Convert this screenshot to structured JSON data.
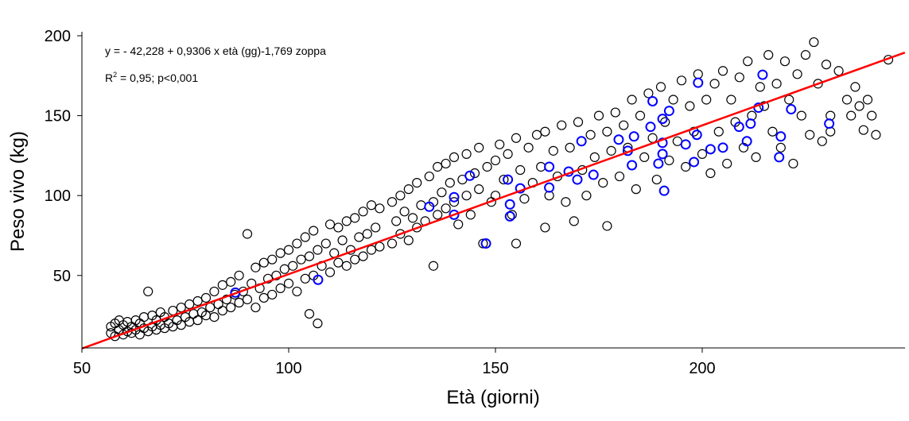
{
  "chart_data": {
    "type": "scatter",
    "xlabel": "Età (giorni)",
    "ylabel": "Peso vivo (kg)",
    "xlim": [
      50,
      250
    ],
    "ylim": [
      5,
      205
    ],
    "xticks": [
      50,
      100,
      150,
      200
    ],
    "yticks": [
      50,
      100,
      150,
      200
    ],
    "grid": false,
    "annotations": {
      "equation": "y = - 42,228 + 0,9306 x età (gg)-1,769 zoppa",
      "r2_prefix": "R",
      "r2_sup": "2",
      "r2_rest": " = 0,95; p<0,001"
    },
    "regression": {
      "intercept": -42.228,
      "slope": 0.9306,
      "color": "#ff0000"
    },
    "series": [
      {
        "marker": "open-circle",
        "color": "#000000",
        "points": [
          [
            57,
            14
          ],
          [
            57,
            18
          ],
          [
            58,
            12
          ],
          [
            58,
            20
          ],
          [
            59,
            16
          ],
          [
            59,
            22
          ],
          [
            60,
            13
          ],
          [
            60,
            19
          ],
          [
            61,
            15
          ],
          [
            61,
            21
          ],
          [
            62,
            14
          ],
          [
            62,
            18
          ],
          [
            63,
            16
          ],
          [
            63,
            22
          ],
          [
            64,
            13
          ],
          [
            64,
            20
          ],
          [
            65,
            17
          ],
          [
            65,
            24
          ],
          [
            66,
            15
          ],
          [
            66,
            40
          ],
          [
            67,
            18
          ],
          [
            67,
            25
          ],
          [
            68,
            16
          ],
          [
            68,
            22
          ],
          [
            69,
            19
          ],
          [
            69,
            27
          ],
          [
            70,
            17
          ],
          [
            70,
            24
          ],
          [
            71,
            20
          ],
          [
            72,
            18
          ],
          [
            72,
            28
          ],
          [
            73,
            22
          ],
          [
            74,
            19
          ],
          [
            74,
            30
          ],
          [
            75,
            24
          ],
          [
            76,
            21
          ],
          [
            76,
            32
          ],
          [
            77,
            26
          ],
          [
            78,
            22
          ],
          [
            78,
            34
          ],
          [
            79,
            27
          ],
          [
            80,
            25
          ],
          [
            80,
            36
          ],
          [
            81,
            30
          ],
          [
            82,
            24
          ],
          [
            82,
            40
          ],
          [
            83,
            32
          ],
          [
            84,
            28
          ],
          [
            84,
            44
          ],
          [
            85,
            35
          ],
          [
            86,
            30
          ],
          [
            86,
            46
          ],
          [
            87,
            38
          ],
          [
            88,
            33
          ],
          [
            88,
            50
          ],
          [
            89,
            40
          ],
          [
            90,
            76
          ],
          [
            90,
            35
          ],
          [
            91,
            45
          ],
          [
            92,
            30
          ],
          [
            92,
            55
          ],
          [
            93,
            42
          ],
          [
            94,
            36
          ],
          [
            94,
            58
          ],
          [
            95,
            48
          ],
          [
            96,
            38
          ],
          [
            96,
            60
          ],
          [
            97,
            50
          ],
          [
            98,
            42
          ],
          [
            98,
            64
          ],
          [
            99,
            54
          ],
          [
            100,
            45
          ],
          [
            100,
            66
          ],
          [
            101,
            56
          ],
          [
            102,
            40
          ],
          [
            102,
            70
          ],
          [
            103,
            60
          ],
          [
            104,
            48
          ],
          [
            104,
            74
          ],
          [
            105,
            26
          ],
          [
            105,
            62
          ],
          [
            106,
            50
          ],
          [
            106,
            78
          ],
          [
            107,
            20
          ],
          [
            107,
            66
          ],
          [
            108,
            56
          ],
          [
            109,
            70
          ],
          [
            110,
            52
          ],
          [
            110,
            82
          ],
          [
            111,
            64
          ],
          [
            112,
            58
          ],
          [
            112,
            80
          ],
          [
            113,
            72
          ],
          [
            114,
            56
          ],
          [
            114,
            84
          ],
          [
            115,
            66
          ],
          [
            116,
            60
          ],
          [
            116,
            86
          ],
          [
            117,
            74
          ],
          [
            118,
            62
          ],
          [
            118,
            90
          ],
          [
            119,
            76
          ],
          [
            120,
            66
          ],
          [
            120,
            94
          ],
          [
            121,
            80
          ],
          [
            122,
            68
          ],
          [
            122,
            92
          ],
          [
            125,
            70
          ],
          [
            125,
            96
          ],
          [
            126,
            84
          ],
          [
            127,
            76
          ],
          [
            127,
            100
          ],
          [
            128,
            90
          ],
          [
            129,
            72
          ],
          [
            129,
            104
          ],
          [
            130,
            86
          ],
          [
            131,
            80
          ],
          [
            131,
            108
          ],
          [
            132,
            94
          ],
          [
            133,
            84
          ],
          [
            134,
            112
          ],
          [
            135,
            96
          ],
          [
            135,
            56
          ],
          [
            136,
            88
          ],
          [
            136,
            118
          ],
          [
            137,
            102
          ],
          [
            138,
            92
          ],
          [
            138,
            120
          ],
          [
            139,
            108
          ],
          [
            140,
            96
          ],
          [
            140,
            124
          ],
          [
            141,
            82
          ],
          [
            142,
            110
          ],
          [
            143,
            100
          ],
          [
            143,
            126
          ],
          [
            144,
            88
          ],
          [
            145,
            114
          ],
          [
            146,
            104
          ],
          [
            146,
            130
          ],
          [
            147,
            70
          ],
          [
            148,
            118
          ],
          [
            149,
            96
          ],
          [
            150,
            122
          ],
          [
            150,
            100
          ],
          [
            151,
            132
          ],
          [
            152,
            110
          ],
          [
            153,
            126
          ],
          [
            154,
            88
          ],
          [
            155,
            70
          ],
          [
            155,
            136
          ],
          [
            156,
            116
          ],
          [
            157,
            98
          ],
          [
            158,
            130
          ],
          [
            159,
            108
          ],
          [
            160,
            138
          ],
          [
            161,
            118
          ],
          [
            162,
            80
          ],
          [
            162,
            140
          ],
          [
            163,
            100
          ],
          [
            164,
            128
          ],
          [
            165,
            112
          ],
          [
            166,
            144
          ],
          [
            167,
            96
          ],
          [
            168,
            130
          ],
          [
            169,
            84
          ],
          [
            170,
            146
          ],
          [
            171,
            116
          ],
          [
            172,
            100
          ],
          [
            173,
            138
          ],
          [
            174,
            124
          ],
          [
            175,
            150
          ],
          [
            176,
            108
          ],
          [
            177,
            81
          ],
          [
            177,
            140
          ],
          [
            178,
            128
          ],
          [
            179,
            152
          ],
          [
            180,
            112
          ],
          [
            181,
            144
          ],
          [
            182,
            130
          ],
          [
            183,
            160
          ],
          [
            184,
            104
          ],
          [
            185,
            150
          ],
          [
            186,
            124
          ],
          [
            187,
            164
          ],
          [
            188,
            136
          ],
          [
            189,
            110
          ],
          [
            190,
            168
          ],
          [
            191,
            146
          ],
          [
            192,
            122
          ],
          [
            193,
            160
          ],
          [
            194,
            134
          ],
          [
            195,
            172
          ],
          [
            196,
            118
          ],
          [
            197,
            156
          ],
          [
            198,
            140
          ],
          [
            199,
            176
          ],
          [
            200,
            126
          ],
          [
            201,
            160
          ],
          [
            202,
            114
          ],
          [
            203,
            170
          ],
          [
            204,
            140
          ],
          [
            205,
            178
          ],
          [
            206,
            120
          ],
          [
            207,
            160
          ],
          [
            208,
            146
          ],
          [
            209,
            174
          ],
          [
            210,
            130
          ],
          [
            211,
            184
          ],
          [
            212,
            150
          ],
          [
            213,
            124
          ],
          [
            214,
            168
          ],
          [
            215,
            156
          ],
          [
            216,
            188
          ],
          [
            217,
            140
          ],
          [
            218,
            170
          ],
          [
            219,
            130
          ],
          [
            220,
            184
          ],
          [
            221,
            160
          ],
          [
            222,
            120
          ],
          [
            223,
            176
          ],
          [
            224,
            150
          ],
          [
            225,
            188
          ],
          [
            226,
            138
          ],
          [
            227,
            196
          ],
          [
            228,
            170
          ],
          [
            229,
            134
          ],
          [
            230,
            182
          ],
          [
            231,
            150
          ],
          [
            231,
            140
          ],
          [
            233,
            178
          ],
          [
            235,
            160
          ],
          [
            236,
            150
          ],
          [
            237,
            168
          ],
          [
            238,
            156
          ],
          [
            239,
            141
          ],
          [
            240,
            160
          ],
          [
            241,
            150
          ],
          [
            242,
            138
          ],
          [
            245,
            185
          ]
        ]
      },
      {
        "name": "zoppa",
        "marker": "open-circle",
        "color": "#0000ff",
        "points": [
          [
            87.1,
            39.3
          ],
          [
            107.1,
            47.3
          ],
          [
            134,
            93
          ],
          [
            140,
            88
          ],
          [
            140,
            99
          ],
          [
            143.8,
            112.4
          ],
          [
            147.7,
            70
          ],
          [
            153.5,
            87
          ],
          [
            153.5,
            94.5
          ],
          [
            156,
            104.5
          ],
          [
            153,
            110
          ],
          [
            163,
            118
          ],
          [
            163,
            105
          ],
          [
            167.7,
            115
          ],
          [
            170.8,
            134
          ],
          [
            169.8,
            110
          ],
          [
            173.7,
            113
          ],
          [
            179.8,
            135
          ],
          [
            182,
            128
          ],
          [
            183,
            119
          ],
          [
            183.5,
            137
          ],
          [
            187.5,
            143
          ],
          [
            188,
            159
          ],
          [
            189.4,
            120
          ],
          [
            190.4,
            133
          ],
          [
            190.4,
            126
          ],
          [
            190.8,
            103
          ],
          [
            190.4,
            148
          ],
          [
            192,
            153
          ],
          [
            196,
            132
          ],
          [
            198,
            121
          ],
          [
            198.7,
            138
          ],
          [
            199,
            170.6
          ],
          [
            202,
            129
          ],
          [
            205,
            130
          ],
          [
            208.9,
            143
          ],
          [
            210.8,
            134
          ],
          [
            211.7,
            145
          ],
          [
            213.6,
            155
          ],
          [
            214.6,
            175.6
          ],
          [
            218.6,
            124
          ],
          [
            219,
            137
          ],
          [
            221.5,
            154
          ],
          [
            230.7,
            145
          ]
        ]
      }
    ]
  }
}
